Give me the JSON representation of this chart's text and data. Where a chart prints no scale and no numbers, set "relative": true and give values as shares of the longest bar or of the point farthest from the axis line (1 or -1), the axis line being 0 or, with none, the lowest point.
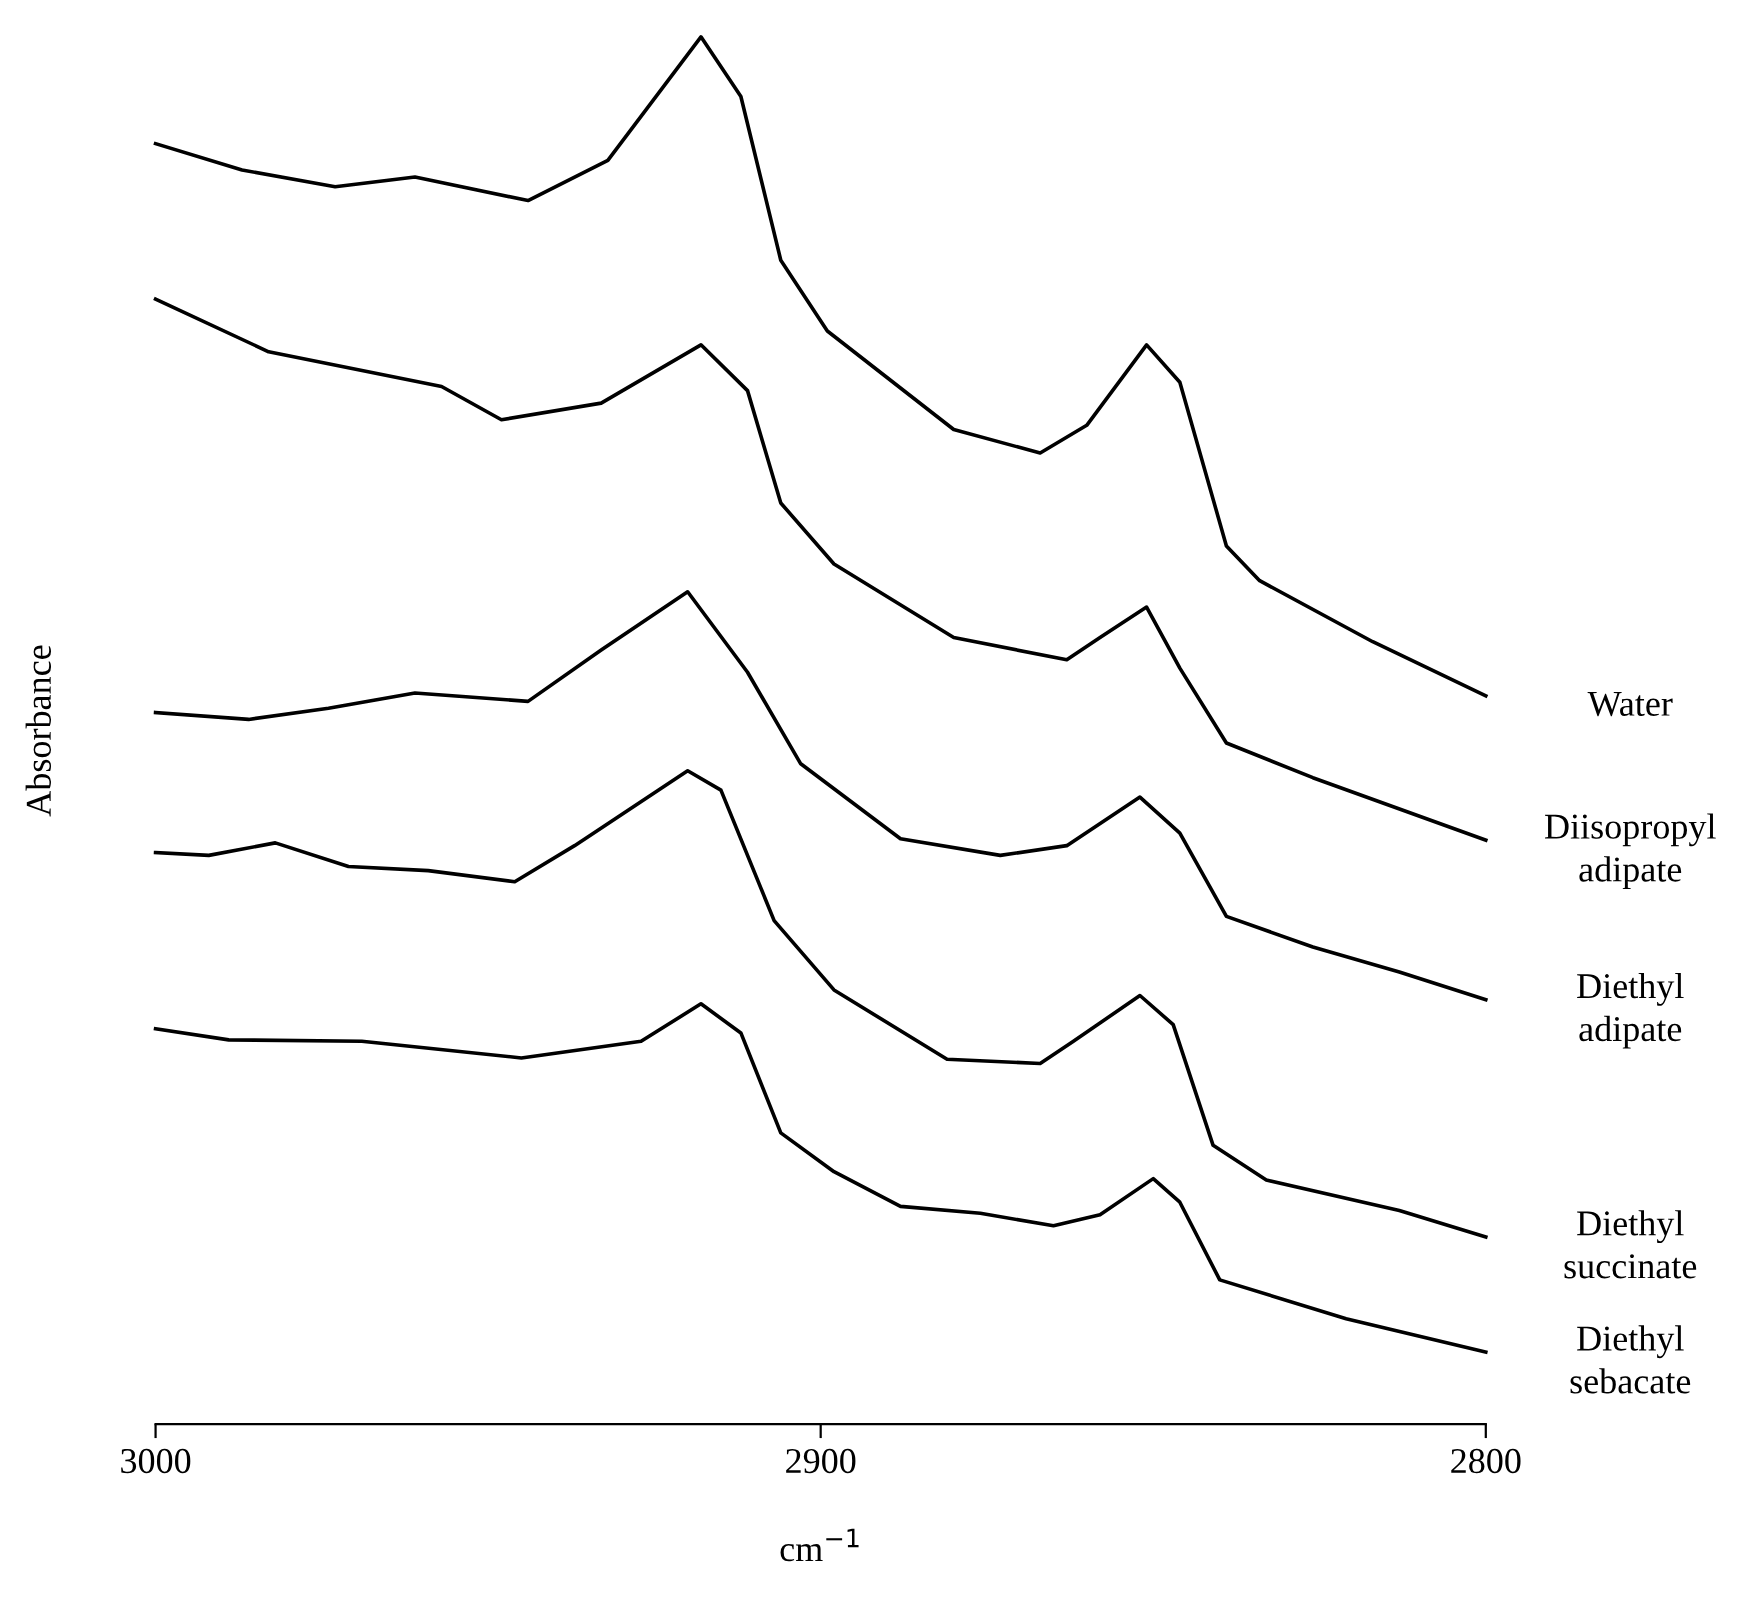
{
  "chart_data": {
    "type": "line",
    "relative": true,
    "ylabel": "Absorbance",
    "xlabel": "cm$^{−1}$",
    "xlim": [
      3000,
      2800
    ],
    "xticks": [
      3000,
      2900,
      2800
    ],
    "grid": false,
    "legend": false,
    "marker": "none",
    "line_style": "solid",
    "series": [
      {
        "name": "Water",
        "color": "#000000",
        "x": [
          3000,
          2987,
          2973,
          2961,
          2944,
          2932,
          2918,
          2912,
          2906,
          2899,
          2880,
          2867,
          2860,
          2851,
          2846,
          2839,
          2834,
          2817,
          2800
        ],
        "values": [
          0.923,
          0.904,
          0.892,
          0.899,
          0.882,
          0.911,
          1.0,
          0.957,
          0.839,
          0.788,
          0.717,
          0.7,
          0.72,
          0.778,
          0.751,
          0.633,
          0.608,
          0.564,
          0.525
        ]
      },
      {
        "name": "Diisopropyl\nadipate",
        "color": "#000000",
        "x": [
          3000,
          2983,
          2957,
          2948,
          2933,
          2918,
          2911,
          2906,
          2898,
          2880,
          2863,
          2858,
          2851,
          2846,
          2839,
          2826,
          2800
        ],
        "values": [
          0.811,
          0.773,
          0.748,
          0.724,
          0.736,
          0.778,
          0.745,
          0.664,
          0.62,
          0.567,
          0.551,
          0.567,
          0.589,
          0.545,
          0.491,
          0.466,
          0.421
        ]
      },
      {
        "name": "Diethyl\nadipate",
        "color": "#000000",
        "x": [
          3000,
          2986,
          2974,
          2961,
          2944,
          2933,
          2920,
          2911,
          2903,
          2888,
          2873,
          2863,
          2852,
          2846,
          2839,
          2826,
          2813,
          2800
        ],
        "values": [
          0.513,
          0.508,
          0.516,
          0.527,
          0.521,
          0.558,
          0.6,
          0.542,
          0.476,
          0.422,
          0.41,
          0.417,
          0.452,
          0.426,
          0.366,
          0.344,
          0.326,
          0.306
        ]
      },
      {
        "name": "Diethyl\nsuccinate",
        "color": "#000000",
        "x": [
          3000,
          2992,
          2982,
          2971,
          2959,
          2946,
          2937,
          2920,
          2915,
          2907,
          2898,
          2881,
          2867,
          2862,
          2852,
          2847,
          2841,
          2833,
          2813,
          2800
        ],
        "values": [
          0.412,
          0.41,
          0.419,
          0.402,
          0.399,
          0.391,
          0.417,
          0.471,
          0.457,
          0.363,
          0.313,
          0.263,
          0.26,
          0.276,
          0.309,
          0.288,
          0.201,
          0.176,
          0.154,
          0.135
        ]
      },
      {
        "name": "Diethyl\nsebacate",
        "color": "#000000",
        "x": [
          3000,
          2989,
          2969,
          2945,
          2927,
          2918,
          2912,
          2906,
          2898,
          2888,
          2876,
          2865,
          2858,
          2850,
          2846,
          2840,
          2821,
          2800
        ],
        "values": [
          0.285,
          0.277,
          0.276,
          0.264,
          0.276,
          0.303,
          0.282,
          0.21,
          0.182,
          0.157,
          0.152,
          0.143,
          0.151,
          0.177,
          0.16,
          0.104,
          0.076,
          0.052
        ]
      }
    ]
  }
}
